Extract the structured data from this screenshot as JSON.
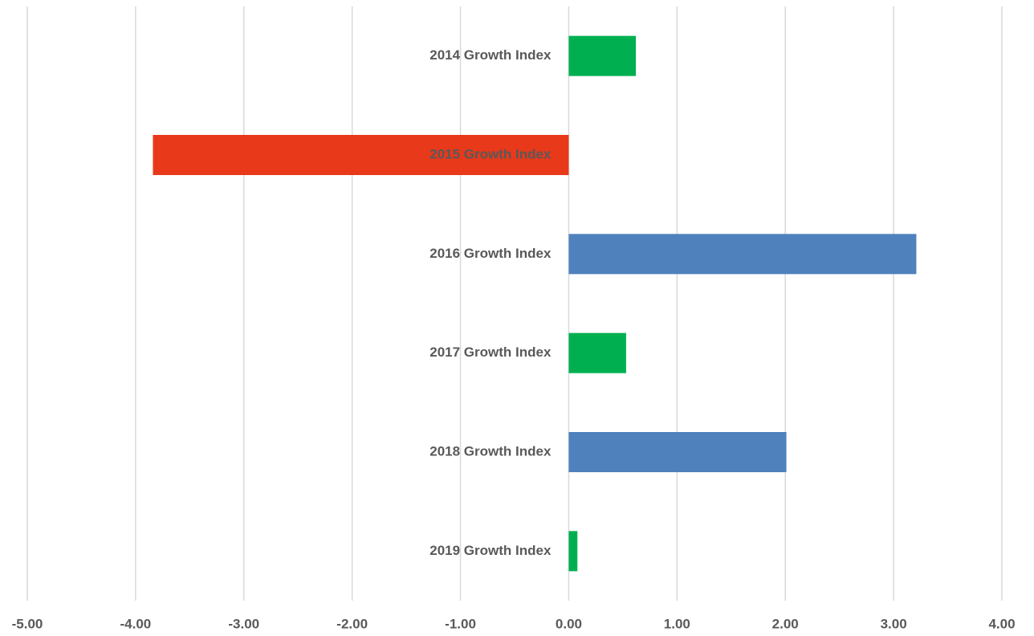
{
  "chart_data": {
    "type": "bar",
    "orientation": "horizontal",
    "categories": [
      "2014 Growth Index",
      "2015 Growth Index",
      "2016 Growth Index",
      "2017 Growth Index",
      "2018 Growth Index",
      "2019 Growth Index"
    ],
    "values": [
      0.62,
      -3.84,
      3.21,
      0.53,
      2.01,
      0.08
    ],
    "colors": [
      "#00b050",
      "#e8391a",
      "#4f81bd",
      "#00b050",
      "#4f81bd",
      "#00b050"
    ],
    "xlim": [
      -5,
      4
    ],
    "xticks": [
      {
        "value": -5,
        "label": "-5.00"
      },
      {
        "value": -4,
        "label": "-4.00"
      },
      {
        "value": -3,
        "label": "-3.00"
      },
      {
        "value": -2,
        "label": "-2.00"
      },
      {
        "value": -1,
        "label": "-1.00"
      },
      {
        "value": 0,
        "label": "0.00"
      },
      {
        "value": 1,
        "label": "1.00"
      },
      {
        "value": 2,
        "label": "2.00"
      },
      {
        "value": 3,
        "label": "3.00"
      },
      {
        "value": 4,
        "label": "4.00"
      }
    ],
    "grid": true
  }
}
